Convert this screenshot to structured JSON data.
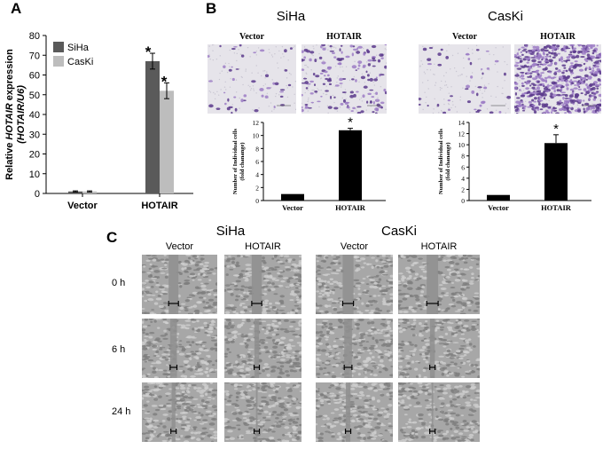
{
  "panel_a": {
    "letter": "A",
    "chart_data": {
      "type": "bar",
      "categories": [
        "Vector",
        "HOTAIR"
      ],
      "series": [
        {
          "name": "SiHa",
          "values": [
            1,
            67
          ],
          "errors": [
            0.3,
            4
          ],
          "color": "#5a5a5a"
        },
        {
          "name": "CasKi",
          "values": [
            1,
            52
          ],
          "errors": [
            0.3,
            4
          ],
          "color": "#bdbdbd"
        }
      ],
      "ylabel_line1_prefix": "Relative ",
      "ylabel_line1_italic": "HOTAIR",
      "ylabel_line1_suffix": " expression",
      "ylabel_line2": "(HOTAIR/U6)",
      "ylim": [
        0,
        80
      ],
      "yticks": [
        "0",
        "10",
        "20",
        "30",
        "40",
        "50",
        "60",
        "70",
        "80"
      ],
      "significance": "*",
      "legend_position": "top-left"
    }
  },
  "panel_b": {
    "letter": "B",
    "groups": [
      {
        "cell_line": "SiHa",
        "image_labels": [
          "Vector",
          "HOTAIR"
        ],
        "chart_data": {
          "type": "bar",
          "categories": [
            "Vector",
            "HOTAIR"
          ],
          "values": [
            1,
            10.8
          ],
          "errors": [
            0,
            0.3
          ],
          "ylabel_line1": "Number of Individual cells",
          "ylabel_line2": "(fold chanange)",
          "ylim": [
            0,
            12
          ],
          "yticks": [
            "0",
            "2",
            "4",
            "6",
            "8",
            "10",
            "12"
          ],
          "significance": "*",
          "color": "#000000"
        }
      },
      {
        "cell_line": "CasKi",
        "image_labels": [
          "Vector",
          "HOTAIR"
        ],
        "chart_data": {
          "type": "bar",
          "categories": [
            "Vector",
            "HOTAIR"
          ],
          "values": [
            1,
            10.3
          ],
          "errors": [
            0,
            1.5
          ],
          "ylabel_line1": "Number of Individual cells",
          "ylabel_line2": "(fold chanange)",
          "ylim": [
            0,
            14
          ],
          "yticks": [
            "0",
            "2",
            "4",
            "6",
            "8",
            "10",
            "12",
            "14"
          ],
          "significance": "*",
          "color": "#000000"
        }
      }
    ]
  },
  "panel_c": {
    "letter": "C",
    "cell_lines": [
      "SiHa",
      "CasKi"
    ],
    "column_labels": [
      "Vector",
      "HOTAIR",
      "Vector",
      "HOTAIR"
    ],
    "time_points": [
      "0 h",
      "6 h",
      "24 h"
    ]
  },
  "colors": {
    "siha_bar": "#5a5a5a",
    "caski_bar": "#bdbdbd",
    "stain": "#7a4fa8",
    "wound_bg": "#a9a9a9"
  }
}
